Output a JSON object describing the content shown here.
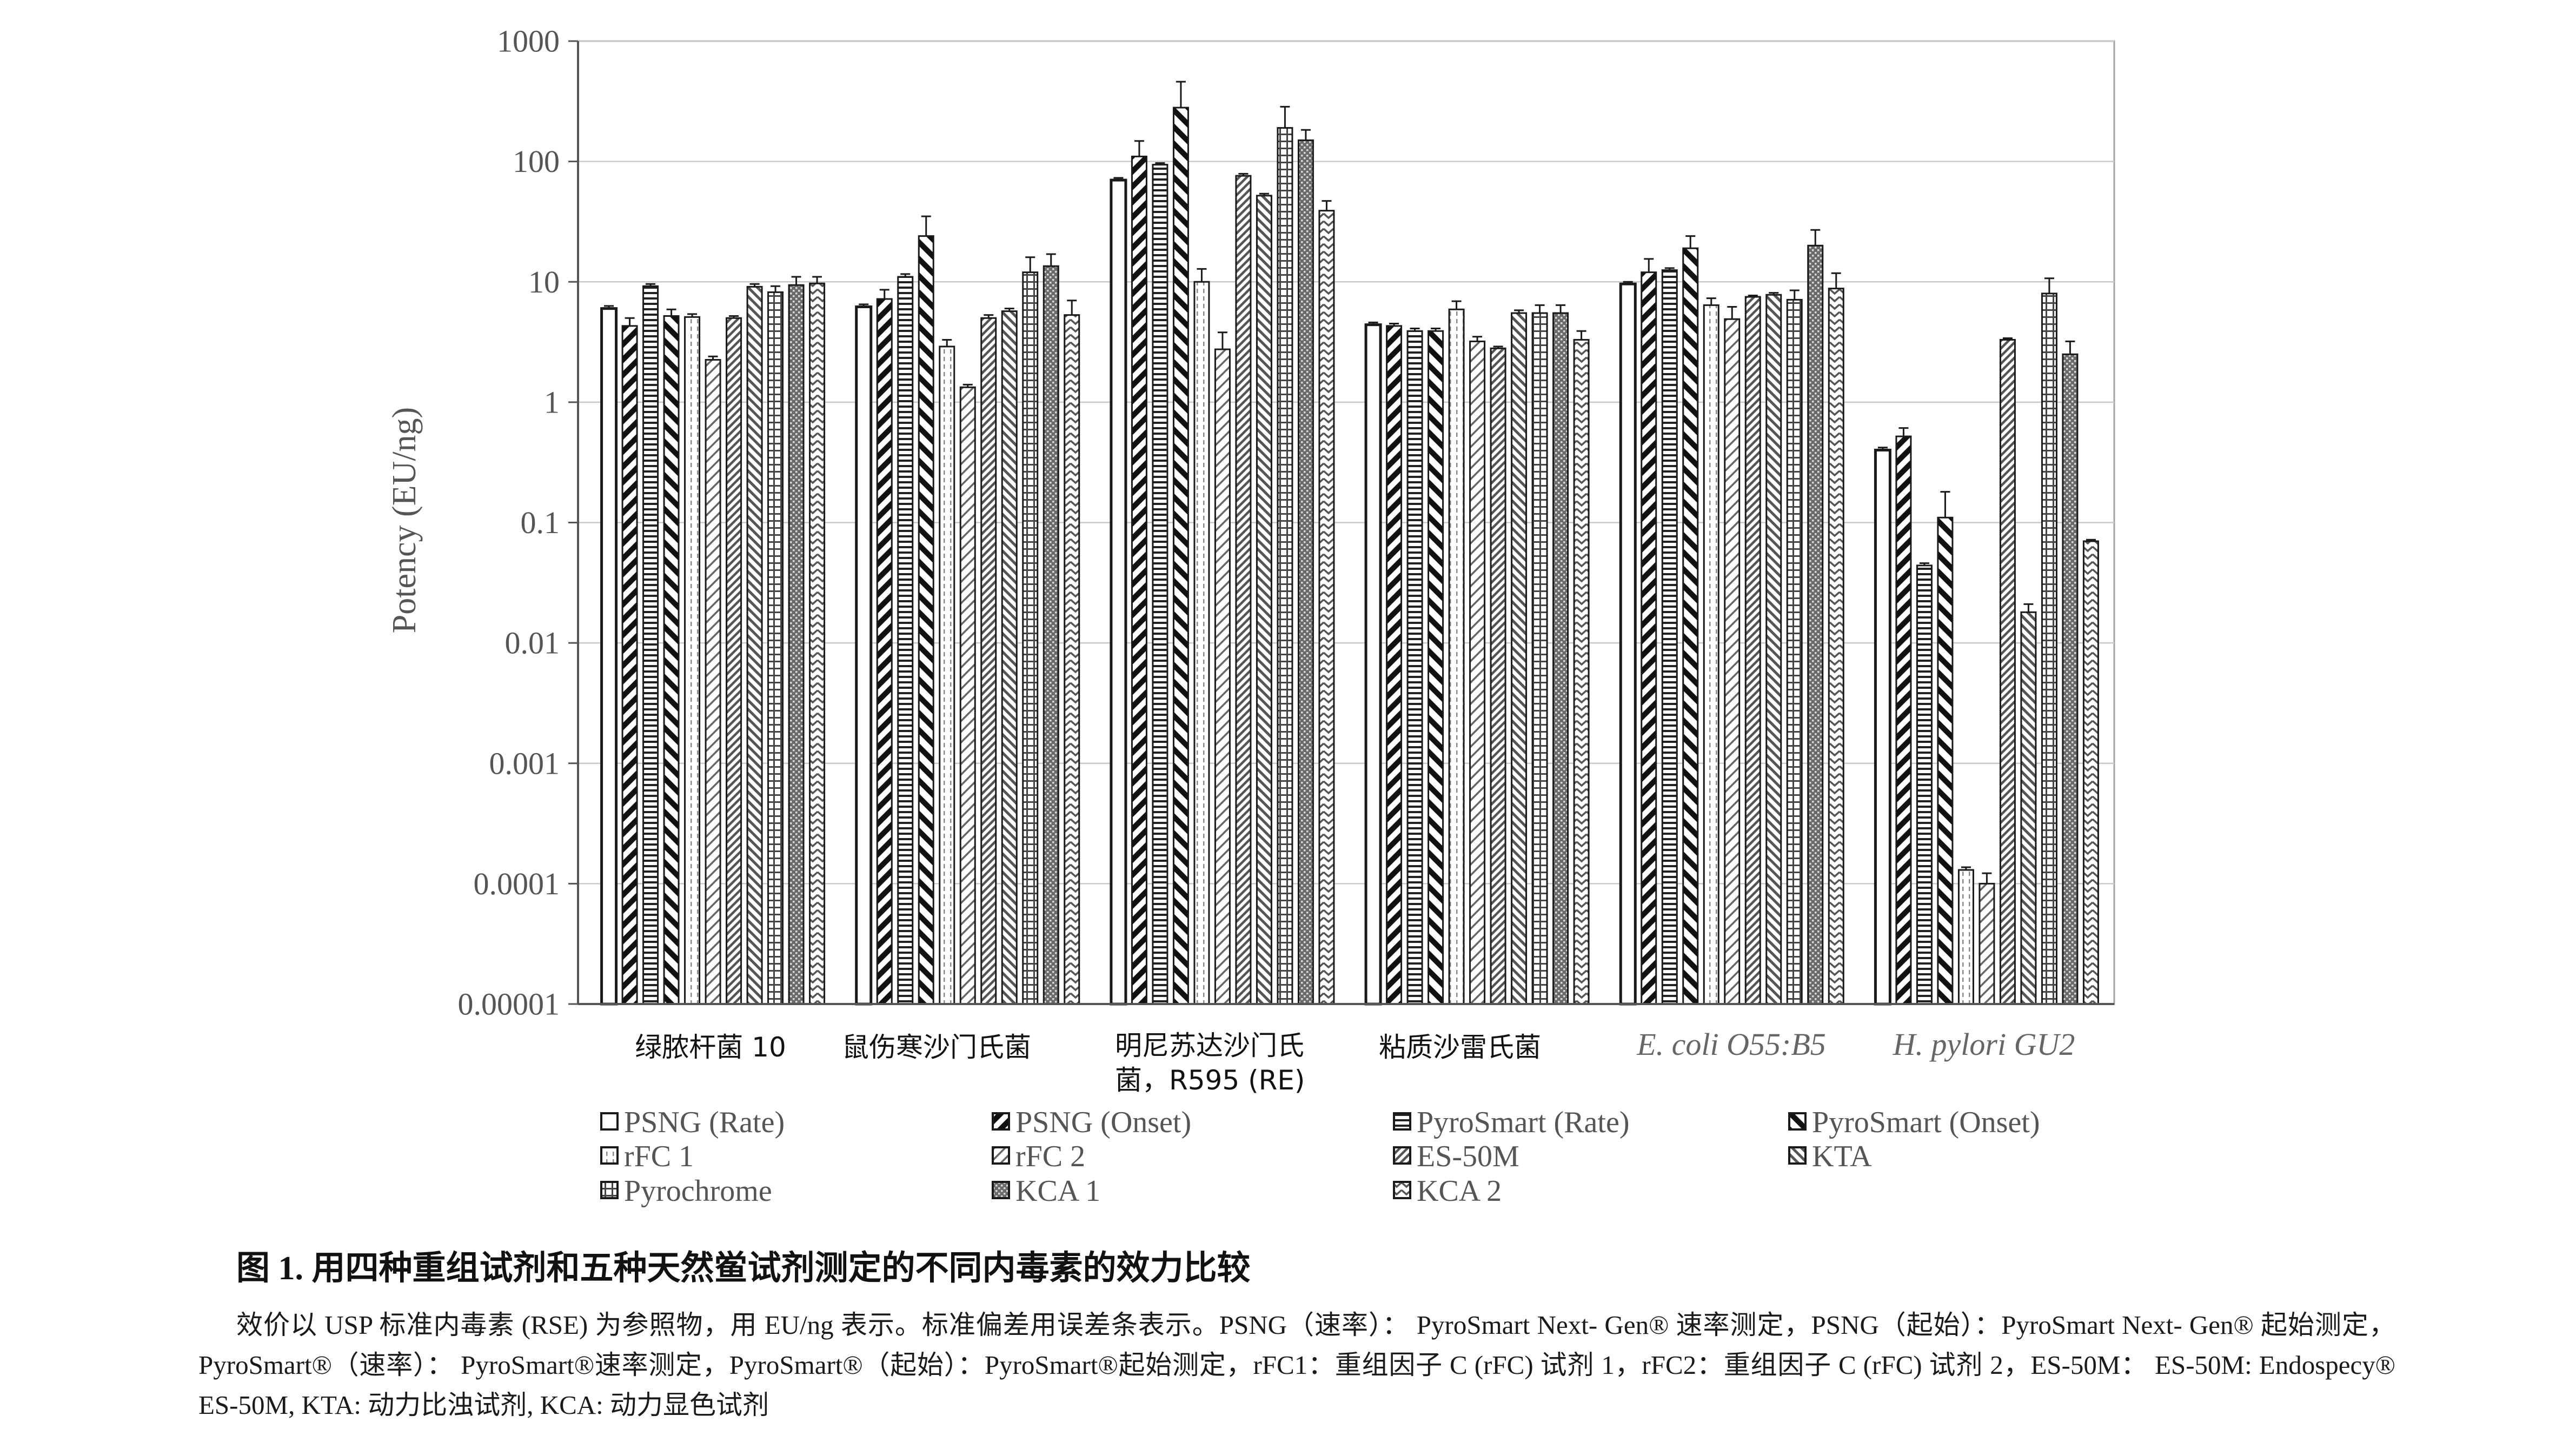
{
  "chart_data": {
    "type": "bar",
    "y_log": true,
    "grid": true,
    "ylabel": "Potency (EU/ng)",
    "ylim": [
      1e-05,
      1000
    ],
    "y_ticks": [
      1000,
      100,
      10,
      1,
      0.1,
      0.01,
      0.001,
      0.0001,
      1e-05
    ],
    "y_tick_labels": [
      "1000",
      "100",
      "10",
      "1",
      "0.1",
      "0.01",
      "0.001",
      "0.0001",
      "0.00001"
    ],
    "categories": [
      "绿脓杆菌 10",
      "鼠伤寒沙门氏菌",
      "明尼苏达沙门氏\n菌，R595 (RE)",
      "粘质沙雷氏菌",
      "E. coli O55:B5",
      "H. pylori GU2"
    ],
    "series": [
      {
        "name": "PSNG (Rate)",
        "values": [
          6.0,
          6.2,
          70,
          4.4,
          9.6,
          0.4
        ],
        "err_upper": [
          6.3,
          6.5,
          73,
          4.6,
          10,
          0.42
        ]
      },
      {
        "name": "PSNG (Onset)",
        "values": [
          4.3,
          7.2,
          110,
          4.3,
          12,
          0.52
        ],
        "err_upper": [
          5.0,
          8.6,
          148,
          4.5,
          15.5,
          0.61
        ]
      },
      {
        "name": "PyroSmart (Rate)",
        "values": [
          9.2,
          11,
          94,
          3.9,
          12.5,
          0.044
        ],
        "err_upper": [
          9.6,
          11.6,
          97,
          4.1,
          13,
          0.046
        ]
      },
      {
        "name": "PyroSmart (Onset)",
        "values": [
          5.2,
          24,
          280,
          3.9,
          19,
          0.11
        ],
        "err_upper": [
          5.9,
          35,
          460,
          4.1,
          24,
          0.18
        ]
      },
      {
        "name": "rFC 1",
        "values": [
          5.1,
          2.9,
          10,
          5.9,
          6.4,
          0.00013
        ],
        "err_upper": [
          5.4,
          3.3,
          12.8,
          6.9,
          7.3,
          0.000137
        ]
      },
      {
        "name": "rFC 2",
        "values": [
          2.25,
          1.33,
          2.75,
          3.2,
          4.9,
          0.0001
        ],
        "err_upper": [
          2.4,
          1.4,
          3.8,
          3.5,
          6.2,
          0.000122
        ]
      },
      {
        "name": "ES-50M",
        "values": [
          5.0,
          5.0,
          76,
          2.8,
          7.5,
          3.3
        ],
        "err_upper": [
          5.2,
          5.3,
          79,
          2.9,
          7.7,
          3.4
        ]
      },
      {
        "name": "KTA",
        "values": [
          9.1,
          5.7,
          52,
          5.5,
          7.8,
          0.018
        ],
        "err_upper": [
          9.6,
          6.0,
          54,
          5.8,
          8.1,
          0.021
        ]
      },
      {
        "name": "Pyrochrome",
        "values": [
          8.2,
          12,
          190,
          5.5,
          7.1,
          8.0
        ],
        "err_upper": [
          9.2,
          16,
          285,
          6.4,
          8.5,
          10.7
        ]
      },
      {
        "name": "KCA 1",
        "values": [
          9.4,
          13.5,
          150,
          5.5,
          20,
          2.5
        ],
        "err_upper": [
          11,
          17,
          183,
          6.4,
          27,
          3.2
        ]
      },
      {
        "name": "KCA 2",
        "values": [
          9.7,
          5.3,
          39,
          3.3,
          8.8,
          0.07
        ],
        "err_upper": [
          11,
          7,
          47,
          3.9,
          11.8,
          0.072
        ]
      }
    ],
    "title": "图 1. 用四种重组试剂和五种天然鲎试剂测定的不同内毒素的效力比较",
    "caption": "效价以 USP 标准内毒素 (RSE) 为参照物，用 EU/ng 表示。标准偏差用误差条表示。PSNG（速率）： PyroSmart Next- Gen® 速率测定，PSNG（起始）：PyroSmart Next- Gen® 起始测定， PyroSmart®（速率）： PyroSmart®速率测定，PyroSmart®（起始）：PyroSmart®起始测定，rFC1：重组因子 C (rFC) 试剂 1，rFC2：重组因子 C (rFC) 试剂 2，ES-50M： ES-50M: Endospecy® ES-50M, KTA: 动力比浊试剂, KCA: 动力显色试剂"
  }
}
